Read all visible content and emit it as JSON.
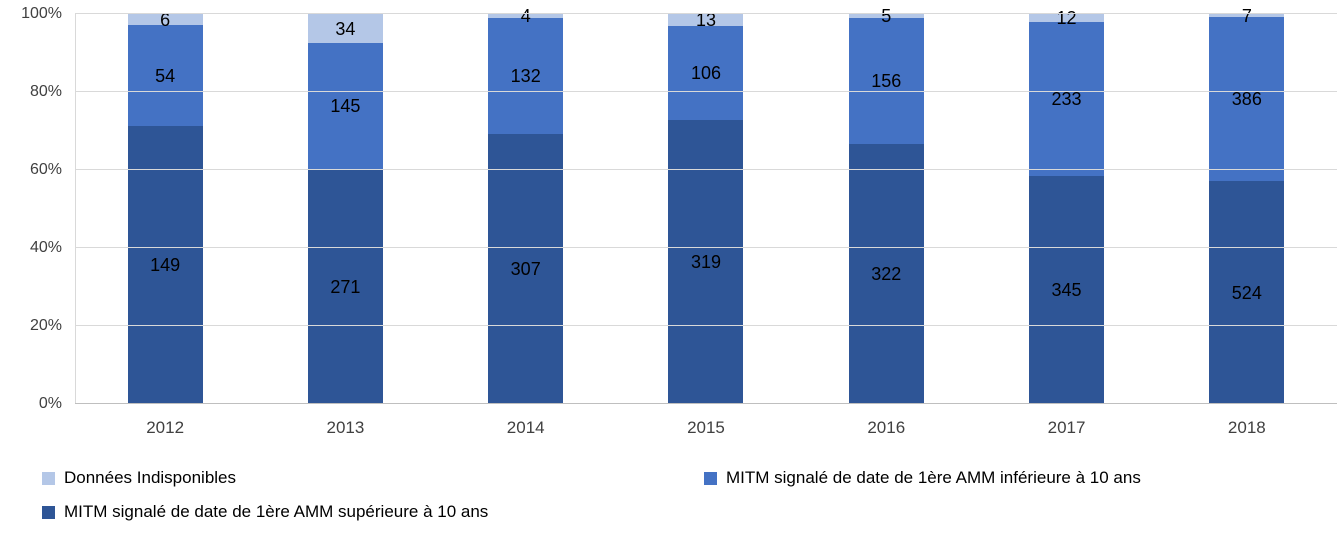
{
  "chart_data": {
    "type": "bar",
    "stacked": true,
    "percent_stacked": true,
    "title": "",
    "xlabel": "",
    "ylabel": "",
    "categories": [
      "2012",
      "2013",
      "2014",
      "2015",
      "2016",
      "2017",
      "2018"
    ],
    "series": [
      {
        "name": "MITM signalé de date de 1ère AMM supérieure à 10 ans",
        "color": "#2E5596",
        "values": [
          149,
          271,
          307,
          319,
          322,
          345,
          524
        ]
      },
      {
        "name": "MITM signalé de date de 1ère AMM inférieure à 10 ans",
        "color": "#4472C4",
        "values": [
          54,
          145,
          132,
          106,
          156,
          233,
          386
        ]
      },
      {
        "name": "Données Indisponibles",
        "color": "#B4C7E7",
        "values": [
          6,
          34,
          4,
          13,
          5,
          12,
          7
        ]
      }
    ],
    "y_ticks": [
      "0%",
      "20%",
      "40%",
      "60%",
      "80%",
      "100%"
    ],
    "ylim": [
      0,
      100
    ],
    "grid": true,
    "gridline_color": "#D9D9D9",
    "legend_position": "bottom",
    "legend_order": [
      "Données Indisponibles",
      "MITM signalé de date de 1ère AMM inférieure à 10 ans",
      "MITM signalé de date de 1ère AMM supérieure à 10 ans"
    ]
  }
}
